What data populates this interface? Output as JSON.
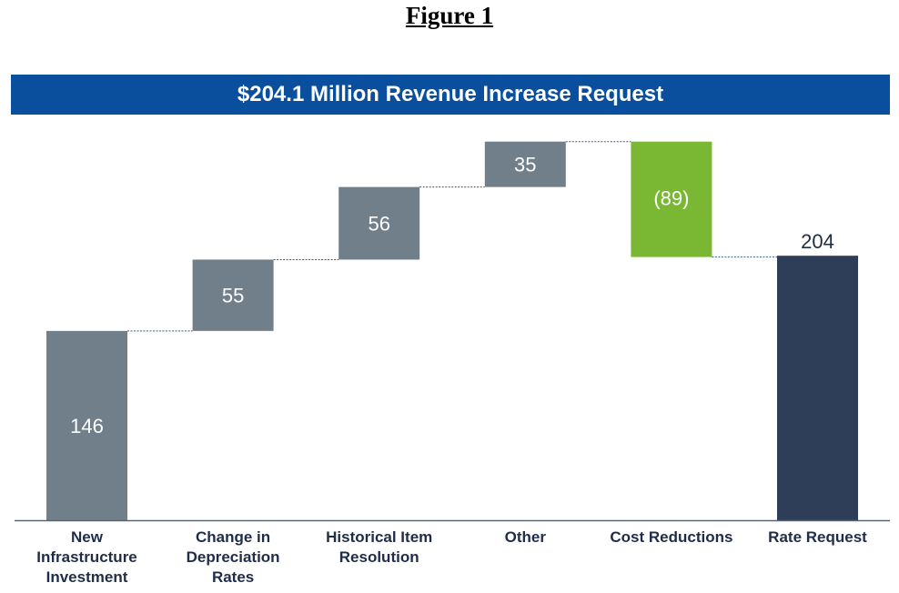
{
  "figure_title": "Figure 1",
  "chart_data": {
    "type": "bar",
    "subtype": "waterfall",
    "title": "$204.1 Million Revenue Increase Request",
    "categories": [
      [
        "New",
        "Infrastructure",
        "Investment"
      ],
      [
        "Change in",
        "Depreciation",
        "Rates"
      ],
      [
        "Historical Item",
        "Resolution"
      ],
      [
        "Other"
      ],
      [
        "Cost Reductions"
      ],
      [
        "Rate Request"
      ]
    ],
    "values": [
      146,
      55,
      56,
      35,
      -89,
      204
    ],
    "value_labels": [
      "146",
      "55",
      "56",
      "35",
      "(89)",
      "204"
    ],
    "is_total": [
      false,
      false,
      false,
      false,
      false,
      true
    ],
    "colors": {
      "increase": "#717f8a",
      "decrease": "#7ab833",
      "total": "#2e3e59",
      "connector": "#3a5a80",
      "banner": "#0a4f9e",
      "axis": "#5a6470"
    },
    "ylim": [
      0,
      296
    ],
    "xlabel": "",
    "ylabel": ""
  }
}
